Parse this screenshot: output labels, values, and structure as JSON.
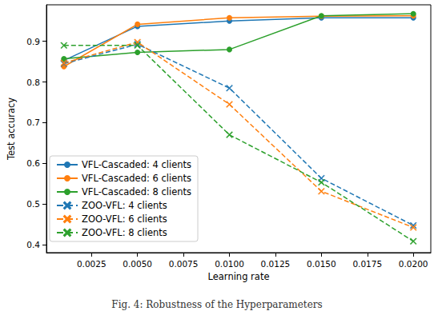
{
  "chart_data": {
    "type": "line",
    "caption": "Fig. 4: Robustness of the Hyperparameters",
    "x_label": "Learning rate",
    "y_label": "Test accuracy",
    "x": [
      0.001,
      0.005,
      0.01,
      0.015,
      0.02
    ],
    "xlim": [
      5e-05,
      0.02095
    ],
    "xticks": [
      {
        "value": 0.0025,
        "label": "0.0025"
      },
      {
        "value": 0.005,
        "label": "0.0050"
      },
      {
        "value": 0.0075,
        "label": "0.0075"
      },
      {
        "value": 0.01,
        "label": "0.0100"
      },
      {
        "value": 0.0125,
        "label": "0.0125"
      },
      {
        "value": 0.015,
        "label": "0.0150"
      },
      {
        "value": 0.0175,
        "label": "0.0175"
      },
      {
        "value": 0.02,
        "label": "0.0200"
      }
    ],
    "ylim": [
      0.38,
      0.99
    ],
    "yticks": [
      0.4,
      0.5,
      0.6,
      0.7,
      0.8,
      0.9
    ],
    "grid": false,
    "legend": "lower left",
    "series": [
      {
        "name": "VFL-Cascaded: 4 clients",
        "color": "#1f77b4",
        "marker": "o",
        "line_style": "solid",
        "values": [
          0.853,
          0.937,
          0.95,
          0.958,
          0.958
        ]
      },
      {
        "name": "VFL-Cascaded: 6 clients",
        "color": "#ff7f0e",
        "marker": "o",
        "line_style": "solid",
        "values": [
          0.838,
          0.942,
          0.958,
          0.962,
          0.963
        ]
      },
      {
        "name": "VFL-Cascaded: 8 clients",
        "color": "#2ca02c",
        "marker": "o",
        "line_style": "solid",
        "values": [
          0.857,
          0.873,
          0.88,
          0.963,
          0.968
        ]
      },
      {
        "name": "ZOO-VFL: 4 clients",
        "color": "#1f77b4",
        "marker": "x",
        "line_style": "dashed",
        "values": [
          0.845,
          0.893,
          0.785,
          0.563,
          0.447
        ]
      },
      {
        "name": "ZOO-VFL: 6 clients",
        "color": "#ff7f0e",
        "marker": "x",
        "line_style": "dashed",
        "values": [
          0.847,
          0.898,
          0.745,
          0.531,
          0.442
        ]
      },
      {
        "name": "ZOO-VFL: 8 clients",
        "color": "#2ca02c",
        "marker": "x",
        "line_style": "dashed",
        "values": [
          0.89,
          0.89,
          0.67,
          0.553,
          0.408
        ]
      }
    ]
  }
}
